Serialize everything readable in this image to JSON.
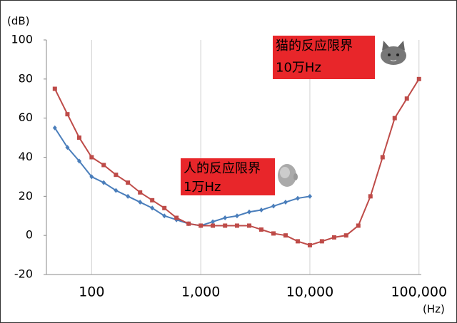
{
  "chart_data": {
    "type": "line",
    "y_label": "(dB)",
    "x_label": "(Hz)",
    "xscale": "log",
    "xlim": [
      38.5,
      105000
    ],
    "ylim": [
      -20,
      100
    ],
    "xticks": [
      {
        "value": 100,
        "label": "100"
      },
      {
        "value": 1000,
        "label": "1,000"
      },
      {
        "value": 10000,
        "label": "10,000"
      },
      {
        "value": 100000,
        "label": "100,000"
      }
    ],
    "yticks": [
      -20,
      0,
      20,
      40,
      60,
      80,
      100
    ],
    "grid": "x",
    "series": [
      {
        "color": "#4a7ebb",
        "marker": "diamond",
        "x": [
          46,
          60,
          77,
          100,
          129,
          167,
          215,
          278,
          359,
          464,
          599,
          774,
          1000,
          1290,
          1670,
          2150,
          2780,
          3590,
          4640,
          5990,
          7740,
          10000
        ],
        "values": [
          55,
          45,
          38,
          30,
          27,
          23,
          20,
          17,
          14,
          10,
          8,
          6,
          5,
          7,
          9,
          10,
          12,
          13,
          15,
          17,
          19,
          20
        ]
      },
      {
        "color": "#be4b48",
        "marker": "square",
        "x": [
          46,
          60,
          77,
          100,
          129,
          167,
          215,
          278,
          359,
          464,
          599,
          774,
          1000,
          1290,
          1670,
          2150,
          2780,
          3590,
          4640,
          5990,
          7740,
          10000,
          12900,
          16700,
          21500,
          27800,
          35900,
          46400,
          59900,
          77400,
          100000
        ],
        "values": [
          75,
          62,
          50,
          40,
          36,
          31,
          27,
          22,
          18,
          14,
          9,
          6,
          5,
          5,
          5,
          5,
          5,
          3,
          1,
          0,
          -3,
          -5,
          -3,
          -1,
          0,
          5,
          20,
          40,
          60,
          70,
          80
        ]
      }
    ],
    "annotations": [
      {
        "lines": [
          "猫的反应限界",
          "10万Hz"
        ],
        "color": "#e8262a"
      },
      {
        "lines": [
          "人的反应限界",
          "1万Hz"
        ],
        "color": "#e8262a"
      }
    ]
  }
}
